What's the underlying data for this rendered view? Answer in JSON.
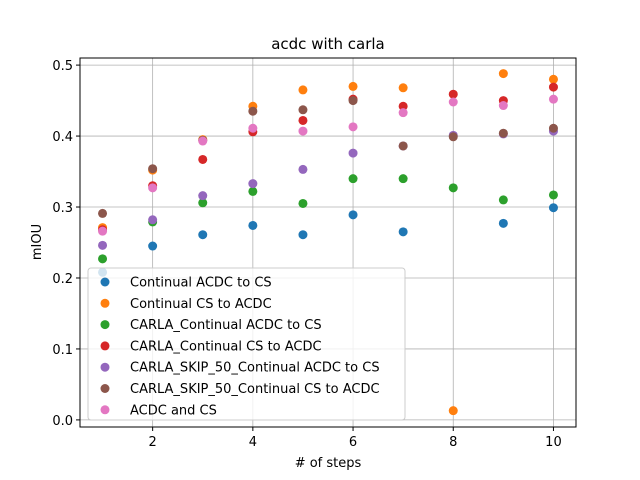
{
  "chart_data": {
    "type": "scatter",
    "title": "acdc with carla",
    "xlabel": "# of steps",
    "ylabel": "mIOU",
    "xlim": [
      0.55,
      10.45
    ],
    "ylim": [
      -0.01,
      0.51
    ],
    "xticks": [
      2,
      4,
      6,
      8,
      10
    ],
    "yticks": [
      0.0,
      0.1,
      0.2,
      0.3,
      0.4,
      0.5
    ],
    "ytick_labels": [
      "0.0",
      "0.1",
      "0.2",
      "0.3",
      "0.4",
      "0.5"
    ],
    "grid": true,
    "legend_position": "lower-left",
    "x": [
      1,
      2,
      3,
      4,
      5,
      6,
      7,
      8,
      9,
      10
    ],
    "series": [
      {
        "name": "Continual ACDC to CS",
        "color": "#1f77b4",
        "values": [
          0.208,
          0.245,
          0.261,
          0.274,
          0.261,
          0.289,
          0.265,
          null,
          0.277,
          0.299
        ]
      },
      {
        "name": "Continual CS to ACDC",
        "color": "#ff7f0e",
        "values": [
          0.271,
          0.352,
          0.395,
          0.442,
          0.465,
          0.47,
          0.468,
          0.013,
          0.488,
          0.48
        ]
      },
      {
        "name": "CARLA_Continual ACDC to CS",
        "color": "#2ca02c",
        "values": [
          0.227,
          0.279,
          0.306,
          0.322,
          0.305,
          0.34,
          0.34,
          0.327,
          0.31,
          0.317
        ]
      },
      {
        "name": "CARLA_Continual CS to ACDC",
        "color": "#d62728",
        "values": [
          0.268,
          0.33,
          0.367,
          0.406,
          0.422,
          0.452,
          0.442,
          0.459,
          0.45,
          0.469
        ]
      },
      {
        "name": "CARLA_SKIP_50_Continual ACDC to CS",
        "color": "#9467bd",
        "values": [
          0.246,
          0.282,
          0.316,
          0.333,
          0.353,
          0.376,
          0.386,
          0.401,
          0.403,
          0.407
        ]
      },
      {
        "name": "CARLA_SKIP_50_Continual CS to ACDC",
        "color": "#8c564b",
        "values": [
          0.291,
          0.354,
          0.394,
          0.435,
          0.437,
          0.45,
          0.386,
          0.399,
          0.404,
          0.411
        ]
      },
      {
        "name": "ACDC and CS",
        "color": "#e377c2",
        "values": [
          0.266,
          0.327,
          0.393,
          0.411,
          0.407,
          0.413,
          0.433,
          0.448,
          0.443,
          0.452
        ]
      }
    ]
  }
}
